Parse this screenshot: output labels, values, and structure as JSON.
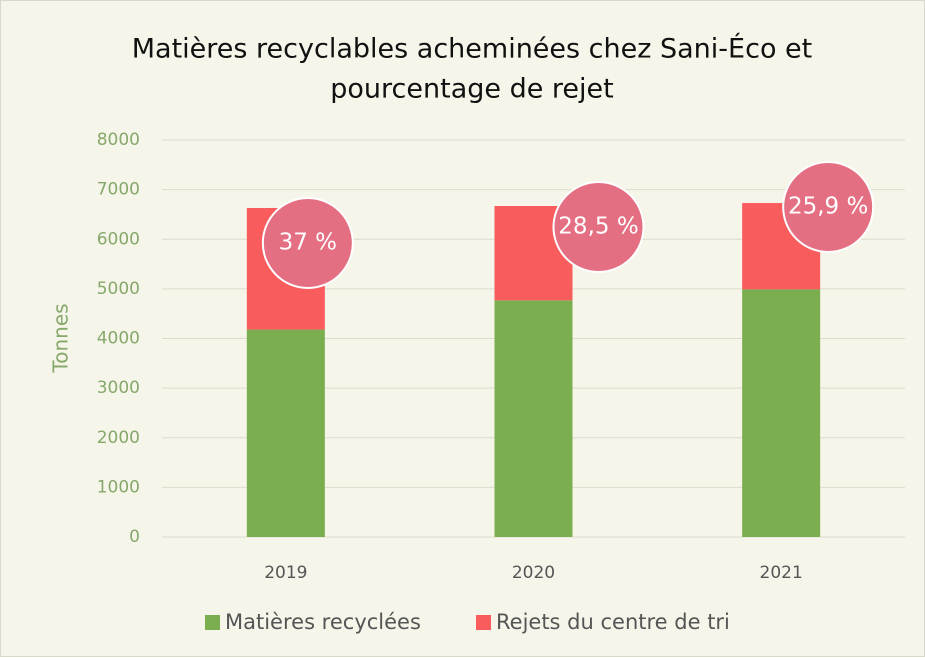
{
  "chart_data": {
    "type": "bar",
    "stacked": true,
    "title": [
      "Matières recyclables acheminées chez Sani-Éco et",
      "pourcentage de rejet"
    ],
    "y_label": "Tonnes",
    "categories": [
      "2019",
      "2020",
      "2021"
    ],
    "series": [
      {
        "name": "Matières recyclées",
        "color": "#7aae4f",
        "values": [
          4180,
          4770,
          4990
        ]
      },
      {
        "name": "Rejets du centre de tri",
        "color": "#f95c5c",
        "values": [
          2450,
          1900,
          1740
        ]
      }
    ],
    "annotations": [
      "37 %",
      "28,5 %",
      "25,9 %"
    ],
    "annotation_color": "#e46f82",
    "ylim": [
      0,
      8000
    ],
    "yticks": [
      0,
      1000,
      2000,
      3000,
      4000,
      5000,
      6000,
      7000,
      8000
    ],
    "grid": true,
    "legend": "bottom"
  }
}
